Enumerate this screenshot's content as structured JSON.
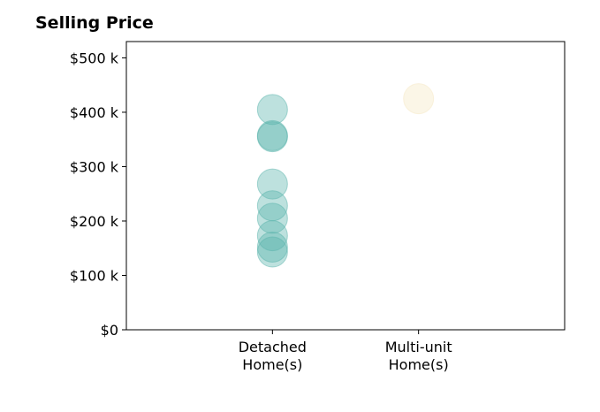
{
  "chart_data": {
    "type": "scatter",
    "title": "Selling Price",
    "xlabel": "",
    "ylabel": "",
    "categories": [
      "Detached\nHome(s)",
      "Multi-unit\nHome(s)"
    ],
    "xlim": [
      -1,
      2
    ],
    "ylim": [
      0,
      530000
    ],
    "y_ticks": [
      0,
      100000,
      200000,
      300000,
      400000,
      500000
    ],
    "y_tick_labels": [
      "$0",
      "$100 k",
      "$200 k",
      "$300 k",
      "$400 k",
      "$500 k"
    ],
    "grid": false,
    "legend": false,
    "series": [
      {
        "category": "Detached\nHome(s)",
        "color": "#5ab4ac",
        "values": [
          405000,
          357000,
          355000,
          268000,
          228000,
          205000,
          173000,
          152000,
          143000
        ]
      },
      {
        "category": "Multi-unit\nHome(s)",
        "color": "#f6e8c3",
        "values": [
          425000
        ]
      }
    ]
  }
}
